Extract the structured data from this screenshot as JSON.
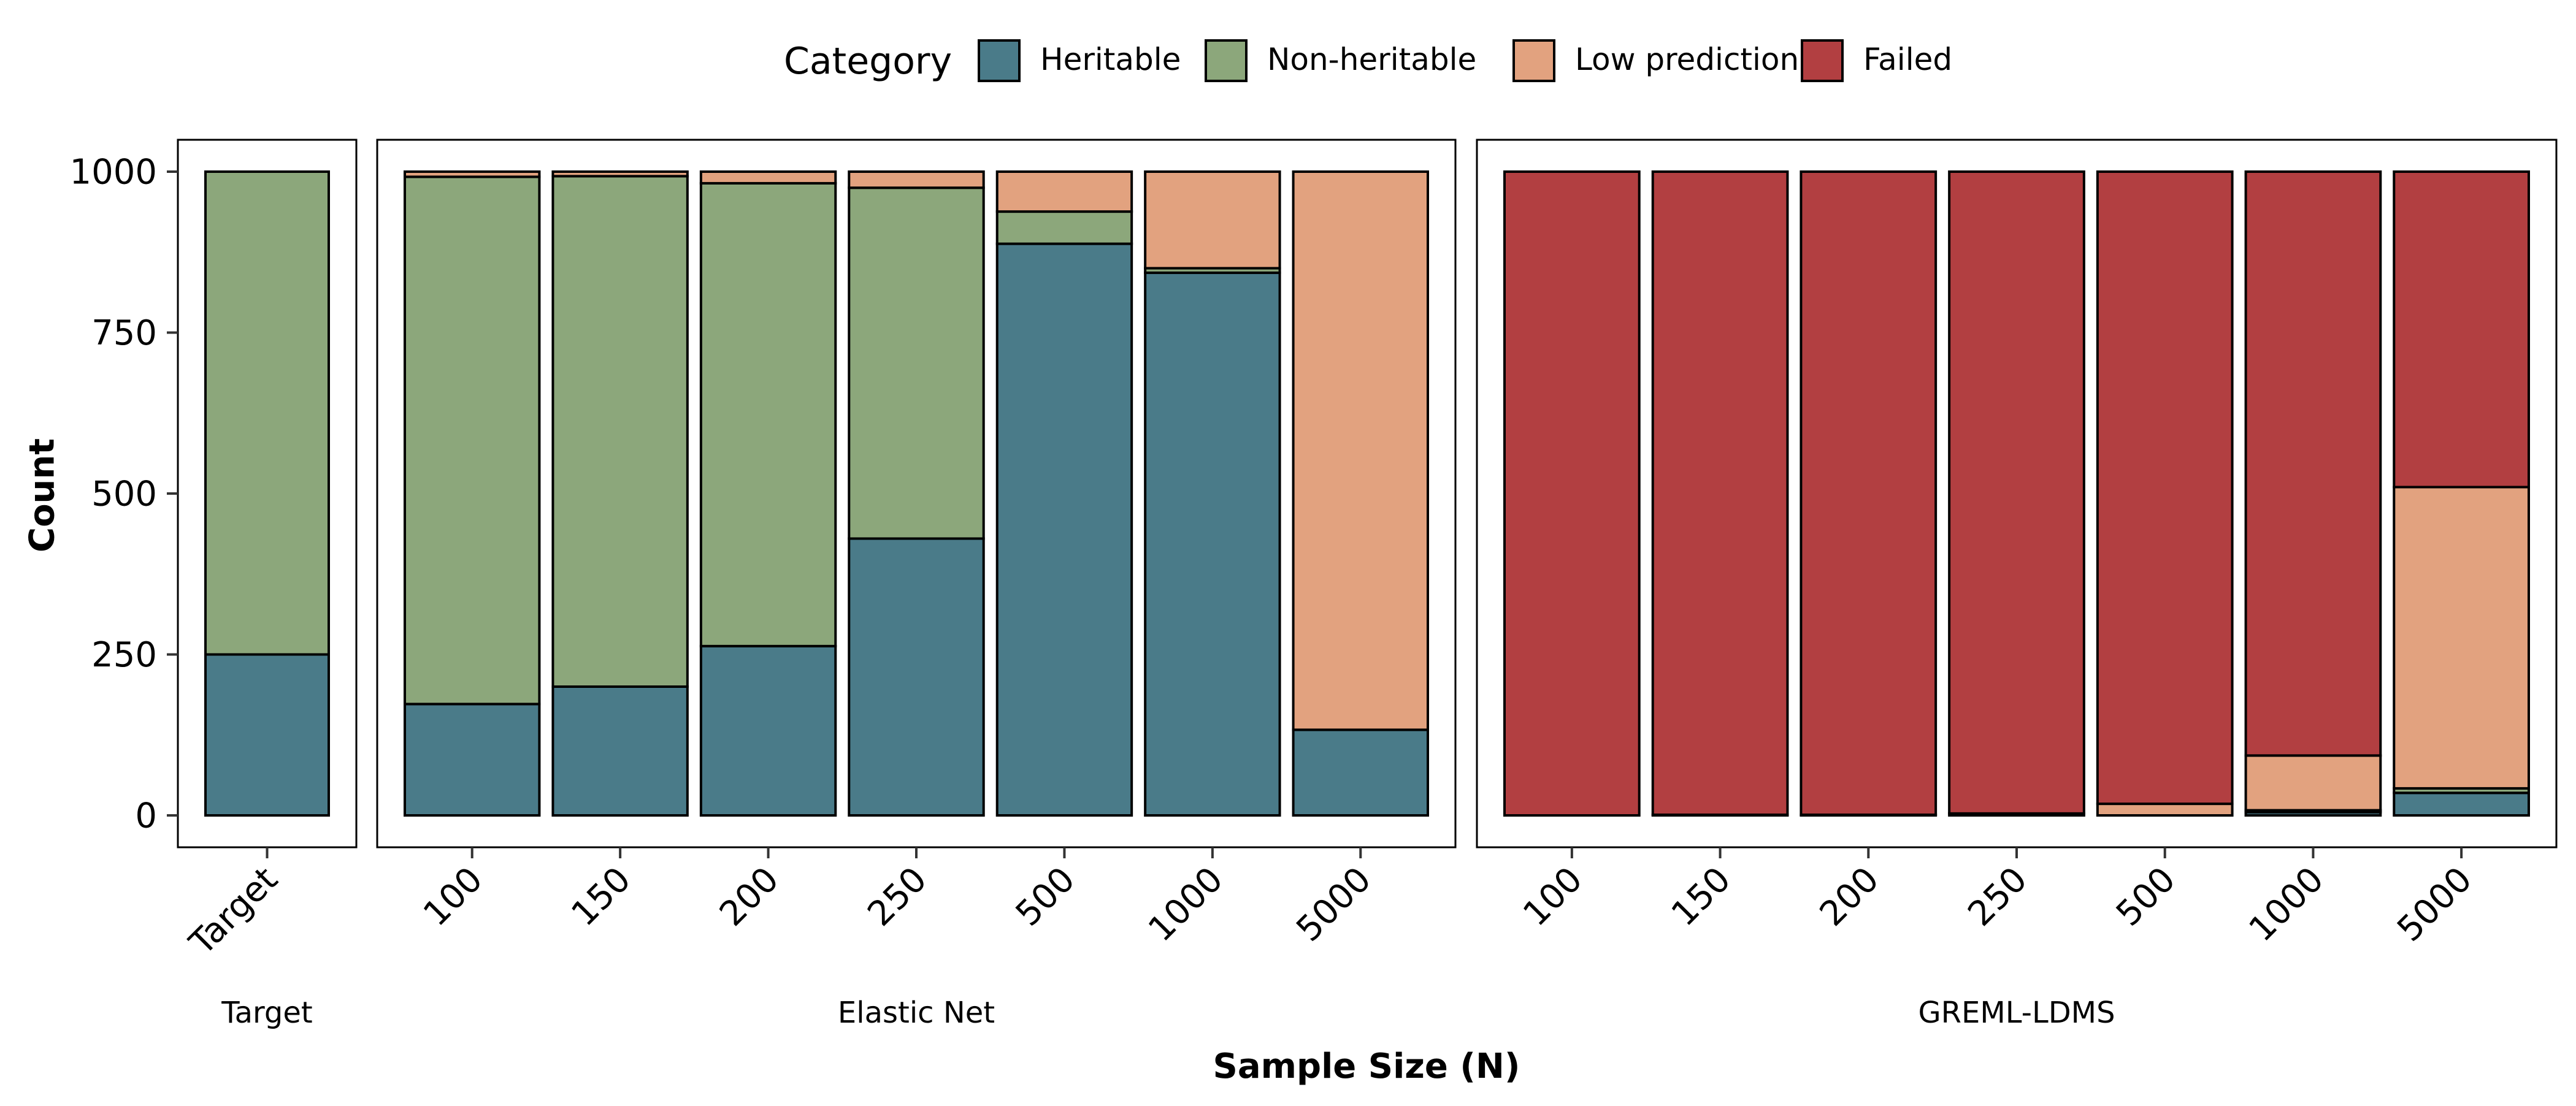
{
  "chart_data": {
    "type": "bar",
    "stacked": true,
    "xlabel": "Sample Size (N)",
    "ylabel": "Count",
    "ylim": [
      0,
      1050
    ],
    "yticks": [
      0,
      250,
      500,
      750,
      1000
    ],
    "grid": false,
    "legend": {
      "title": "Category",
      "position": "top",
      "entries": [
        "Heritable",
        "Non-heritable",
        "Low prediction",
        "Failed"
      ]
    },
    "colors": {
      "Heritable": "#4a7b89",
      "Non-heritable": "#8ca77b",
      "Low prediction": "#e2a27f",
      "Failed": "#b23f41"
    },
    "facets": [
      {
        "name": "Target",
        "categories": [
          "Target"
        ],
        "series": [
          {
            "name": "Heritable",
            "values": [
              250
            ]
          },
          {
            "name": "Non-heritable",
            "values": [
              750
            ]
          },
          {
            "name": "Low prediction",
            "values": [
              0
            ]
          },
          {
            "name": "Failed",
            "values": [
              0
            ]
          }
        ]
      },
      {
        "name": "Elastic Net",
        "categories": [
          "100",
          "150",
          "200",
          "250",
          "500",
          "1000",
          "5000"
        ],
        "series": [
          {
            "name": "Heritable",
            "values": [
              173,
              200,
              263,
              430,
              888,
              843,
              133
            ]
          },
          {
            "name": "Non-heritable",
            "values": [
              819,
              793,
              719,
              545,
              50,
              7,
              0
            ]
          },
          {
            "name": "Low prediction",
            "values": [
              8,
              7,
              18,
              25,
              62,
              150,
              867
            ]
          },
          {
            "name": "Failed",
            "values": [
              0,
              0,
              0,
              0,
              0,
              0,
              0
            ]
          }
        ]
      },
      {
        "name": "GREML-LDMS",
        "categories": [
          "100",
          "150",
          "200",
          "250",
          "500",
          "1000",
          "5000"
        ],
        "series": [
          {
            "name": "Heritable",
            "values": [
              0,
              0,
              0,
              0,
              0,
              5,
              35
            ]
          },
          {
            "name": "Non-heritable",
            "values": [
              0,
              0,
              0,
              0,
              0,
              3,
              7
            ]
          },
          {
            "name": "Low prediction",
            "values": [
              0,
              1,
              1,
              3,
              18,
              85,
              468
            ]
          },
          {
            "name": "Failed",
            "values": [
              1000,
              999,
              999,
              997,
              982,
              907,
              490
            ]
          }
        ]
      }
    ]
  }
}
